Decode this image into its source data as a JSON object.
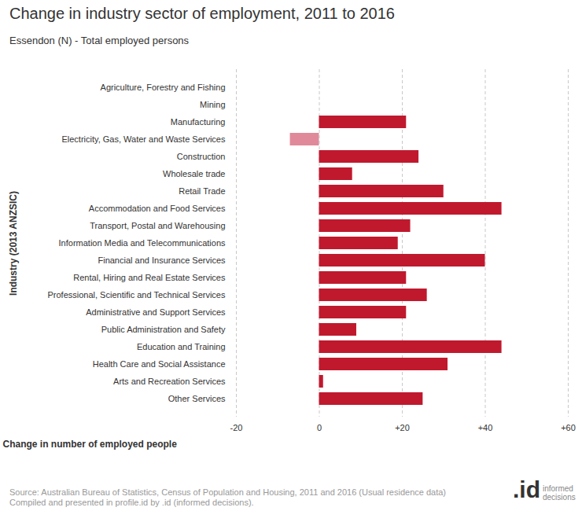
{
  "chart_data": {
    "type": "bar",
    "orientation": "horizontal",
    "title": "Change in industry sector of employment, 2011 to 2016",
    "subtitle": "Essendon (N) - Total employed persons",
    "x_label": "Change in number of employed people",
    "y_label": "Industry (2013 ANZSIC)",
    "categories": [
      "Agriculture, Forestry and Fishing",
      "Mining",
      "Manufacturing",
      "Electricity, Gas, Water and Waste Services",
      "Construction",
      "Wholesale trade",
      "Retail Trade",
      "Accommodation and Food Services",
      "Transport, Postal and Warehousing",
      "Information Media and Telecommunications",
      "Financial and Insurance Services",
      "Rental, Hiring and Real Estate Services",
      "Professional, Scientific and Technical Services",
      "Administrative and Support Services",
      "Public Administration and Safety",
      "Education and Training",
      "Health Care and Social Assistance",
      "Arts and Recreation Services",
      "Other Services"
    ],
    "values": [
      0,
      0,
      21,
      -7,
      24,
      8,
      30,
      44,
      22,
      19,
      40,
      21,
      26,
      21,
      9,
      44,
      31,
      1,
      25
    ],
    "colors": [
      "#c0192e",
      "#c0192e",
      "#c0192e",
      "#e0899a",
      "#c0192e",
      "#c0192e",
      "#c0192e",
      "#c0192e",
      "#c0192e",
      "#c0192e",
      "#c0192e",
      "#c0192e",
      "#c0192e",
      "#c0192e",
      "#c0192e",
      "#c0192e",
      "#c0192e",
      "#c0192e",
      "#c0192e"
    ],
    "xlim": [
      -20,
      60
    ],
    "xticks": [
      -20,
      0,
      {
        "value": 20,
        "label": "+20"
      },
      {
        "value": 40,
        "label": "+40"
      },
      {
        "value": 60,
        "label": "+60"
      }
    ],
    "grid": true,
    "source": [
      "Source: Australian Bureau of Statistics, Census of Population and Housing, 2011 and 2016 (Usual residence data)",
      "Compiled and presented in profile.id by .id (informed decisions)."
    ],
    "logo": {
      "mark": ".id",
      "text": "informed decisions"
    }
  }
}
